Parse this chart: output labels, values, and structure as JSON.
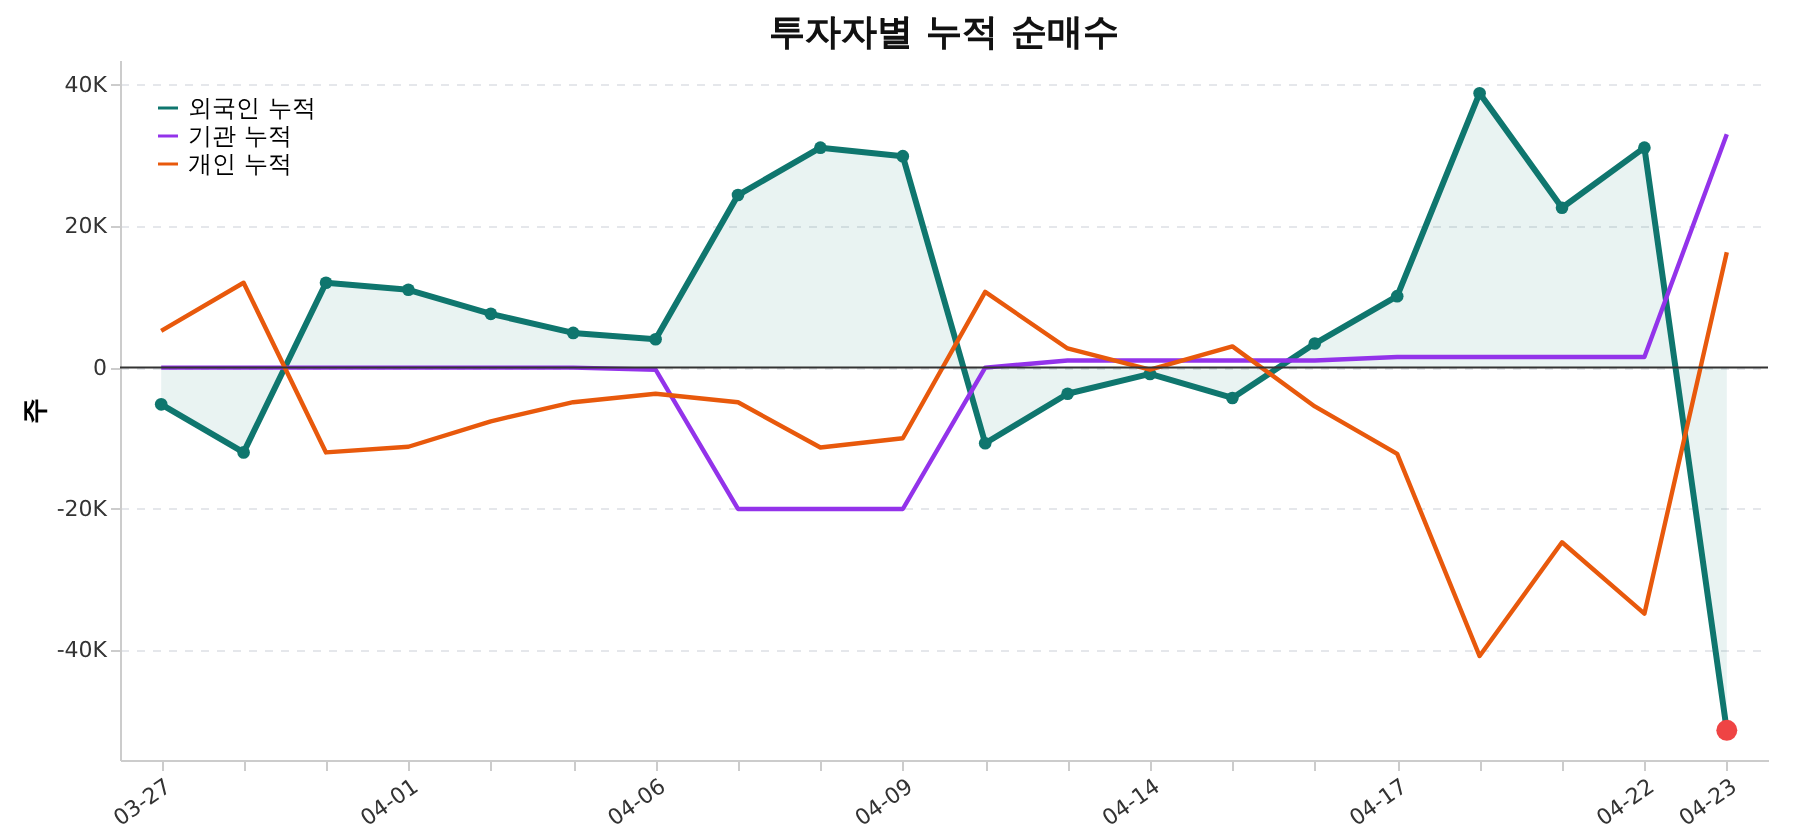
{
  "chart_data": {
    "type": "line",
    "title": "투자자별 누적 순매수",
    "ylabel": "주",
    "categories": [
      "03-27",
      null,
      null,
      "04-01",
      null,
      null,
      "04-06",
      null,
      null,
      "04-09",
      null,
      null,
      "04-14",
      null,
      null,
      "04-17",
      null,
      null,
      "04-22",
      "04-23"
    ],
    "series": [
      {
        "name": "외국인 누적",
        "type": "area",
        "marker": "circle",
        "color": "#0f766e",
        "values": [
          -5200,
          -12000,
          12000,
          11000,
          7600,
          4900,
          4000,
          24400,
          31100,
          29900,
          -10700,
          -3700,
          -900,
          -4300,
          3400,
          10100,
          38800,
          22600,
          31100,
          -51300
        ]
      },
      {
        "name": "기관 누적",
        "type": "line",
        "color": "#9333ea",
        "values": [
          0,
          0,
          0,
          0,
          0,
          0,
          -300,
          -20000,
          -20000,
          -20000,
          0,
          1000,
          1000,
          1000,
          1000,
          1500,
          1500,
          1500,
          1500,
          33000
        ]
      },
      {
        "name": "개인 누적",
        "type": "line",
        "color": "#e8590c",
        "values": [
          5200,
          12000,
          -12000,
          -11200,
          -7600,
          -4900,
          -3700,
          -4900,
          -11300,
          -10000,
          10700,
          2700,
          -300,
          3000,
          -5500,
          -12200,
          -40800,
          -24700,
          -34800,
          16300
        ]
      },
      {
        "type": "scatter",
        "color": "#ef4444",
        "values": [
          null,
          null,
          null,
          null,
          null,
          null,
          null,
          null,
          null,
          null,
          null,
          null,
          null,
          null,
          null,
          null,
          null,
          null,
          null,
          -51300
        ]
      }
    ],
    "ylim": [
      -55500,
      43500
    ],
    "yticks": [
      {
        "value": -40000,
        "label": "-40K"
      },
      {
        "value": -20000,
        "label": "-20K"
      },
      0,
      {
        "value": 20000,
        "label": "20K"
      },
      {
        "value": 40000,
        "label": "40K"
      }
    ],
    "ref_lines": [
      {
        "axis": "y",
        "value": 0,
        "color": "#333333"
      }
    ],
    "grid": "y",
    "legend": "top left",
    "line_style": "solid"
  }
}
